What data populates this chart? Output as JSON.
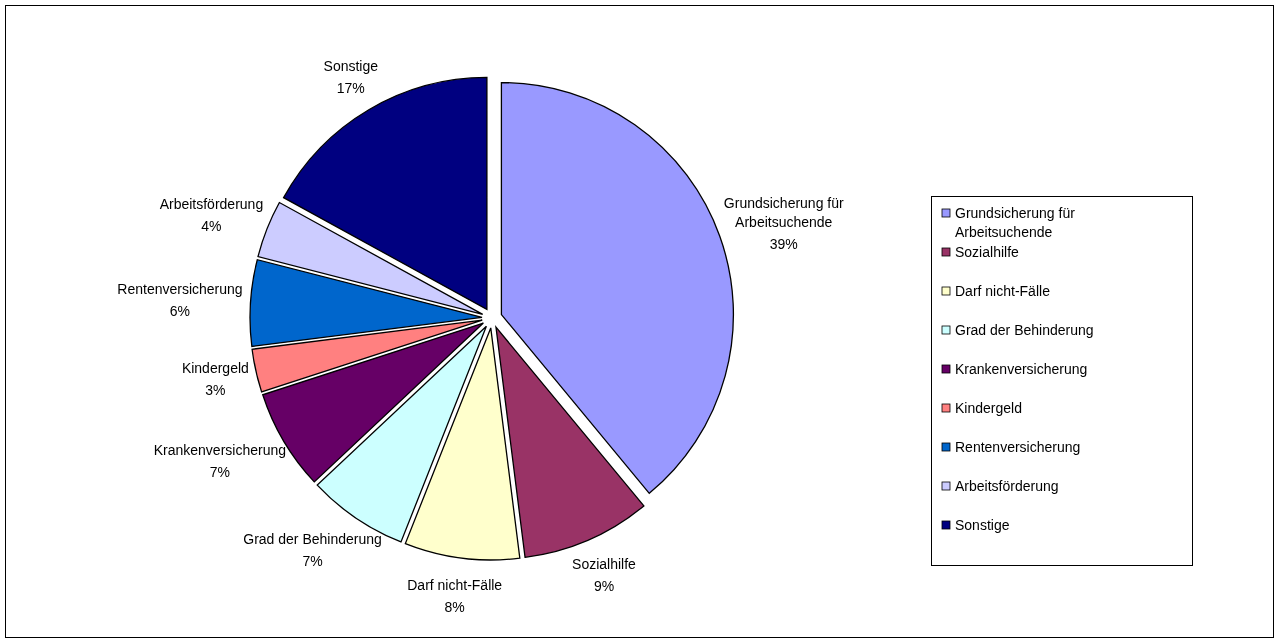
{
  "chart_data": {
    "type": "pie",
    "categories": [
      "Grundsicherung für Arbeitsuchende",
      "Sozialhilfe",
      "Darf nicht-Fälle",
      "Grad der Behinderung",
      "Krankenversicherung",
      "Kindergeld",
      "Rentenversicherung",
      "Arbeitsförderung",
      "Sonstige"
    ],
    "values": [
      39,
      9,
      8,
      7,
      7,
      3,
      6,
      4,
      17
    ],
    "value_labels": [
      "39%",
      "9%",
      "8%",
      "7%",
      "7%",
      "3%",
      "6%",
      "4%",
      "17%"
    ],
    "colors": [
      "#9999ff",
      "#993366",
      "#ffffcc",
      "#ccffff",
      "#660066",
      "#ff8080",
      "#0066cc",
      "#ccccff",
      "#000080"
    ],
    "legend": "right"
  }
}
